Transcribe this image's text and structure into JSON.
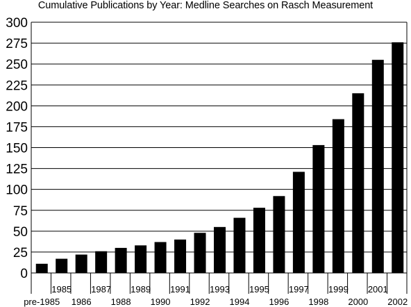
{
  "chart_data": {
    "type": "bar",
    "title": "Cumulative Publications by Year: Medline Searches on Rasch Measurement",
    "xlabel": "",
    "ylabel": "",
    "categories": [
      "pre-1985",
      "1985",
      "1986",
      "1987",
      "1988",
      "1989",
      "1990",
      "1991",
      "1992",
      "1993",
      "1994",
      "1995",
      "1996",
      "1997",
      "1998",
      "1999",
      "2000",
      "2001",
      "2002"
    ],
    "values": [
      11,
      17,
      22,
      26,
      30,
      33,
      37,
      40,
      48,
      55,
      66,
      78,
      92,
      121,
      153,
      184,
      215,
      255,
      276
    ],
    "ylim": [
      0,
      300
    ],
    "yticks": [
      0,
      25,
      50,
      75,
      100,
      125,
      150,
      175,
      200,
      225,
      250,
      275,
      300
    ],
    "grid": true,
    "bar_color": "#000000",
    "grid_color": "#000000"
  }
}
